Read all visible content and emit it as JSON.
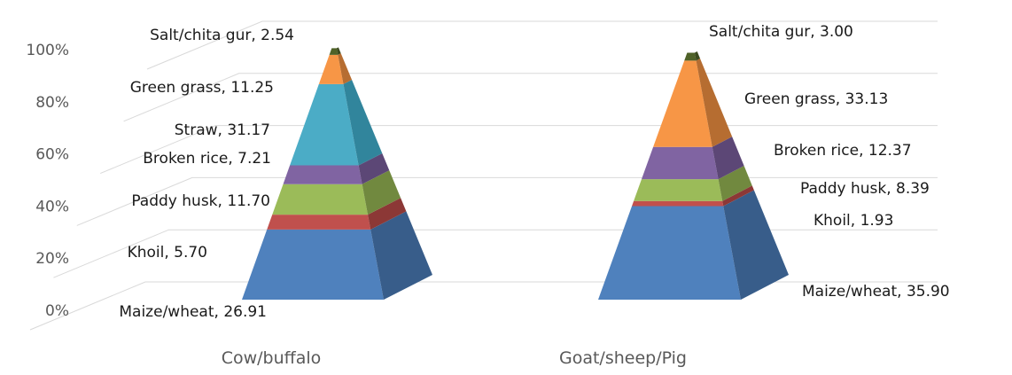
{
  "chart_data": {
    "type": "bar",
    "style": "3d-stacked-percent-pyramid",
    "categories": [
      "Cow/buffalo",
      "Goat/sheep/Pig"
    ],
    "y_tick_labels": [
      "0%",
      "20%",
      "40%",
      "60%",
      "80%",
      "100%"
    ],
    "ylim": [
      0,
      100
    ],
    "grid": true,
    "series": [
      {
        "name": "Maize/wheat",
        "values": [
          26.91,
          35.9
        ],
        "color": "#4f81bd",
        "side_color": "#385d8a"
      },
      {
        "name": "Khoil",
        "values": [
          5.7,
          1.93
        ],
        "color": "#c0504d",
        "side_color": "#8c3836"
      },
      {
        "name": "Paddy husk",
        "values": [
          11.7,
          8.39
        ],
        "color": "#9bbb59",
        "side_color": "#71893f"
      },
      {
        "name": "Broken rice",
        "values": [
          7.21,
          12.37
        ],
        "color": "#8064a2",
        "side_color": "#5c4776"
      },
      {
        "name": "Straw",
        "values": [
          31.17,
          0
        ],
        "color": "#4bacc6",
        "side_color": "#31859c"
      },
      {
        "name": "Green grass",
        "values": [
          11.25,
          33.13
        ],
        "color": "#f79646",
        "side_color": "#b66d31"
      },
      {
        "name": "Salt/chita gur",
        "values": [
          2.54,
          3.0
        ],
        "color": "#4f6228",
        "side_color": "#3b4a1e"
      }
    ],
    "data_labels": [
      [
        {
          "series": "Salt/chita gur",
          "text": "Salt/chita gur, 2.54"
        },
        {
          "series": "Green grass",
          "text": "Green grass, 11.25"
        },
        {
          "series": "Straw",
          "text": "Straw, 31.17"
        },
        {
          "series": "Broken rice",
          "text": "Broken rice, 7.21"
        },
        {
          "series": "Paddy husk",
          "text": "Paddy husk, 11.70"
        },
        {
          "series": "Khoil",
          "text": "Khoil, 5.70"
        },
        {
          "series": "Maize/wheat",
          "text": "Maize/wheat, 26.91"
        }
      ],
      [
        {
          "series": "Salt/chita gur",
          "text": "Salt/chita gur, 3.00"
        },
        {
          "series": "Green grass",
          "text": "Green grass, 33.13"
        },
        {
          "series": "Broken rice",
          "text": "Broken rice, 12.37"
        },
        {
          "series": "Paddy husk",
          "text": "Paddy husk, 8.39"
        },
        {
          "series": "Khoil",
          "text": "Khoil, 1.93"
        },
        {
          "series": "Maize/wheat",
          "text": "Maize/wheat, 35.90"
        }
      ]
    ]
  }
}
